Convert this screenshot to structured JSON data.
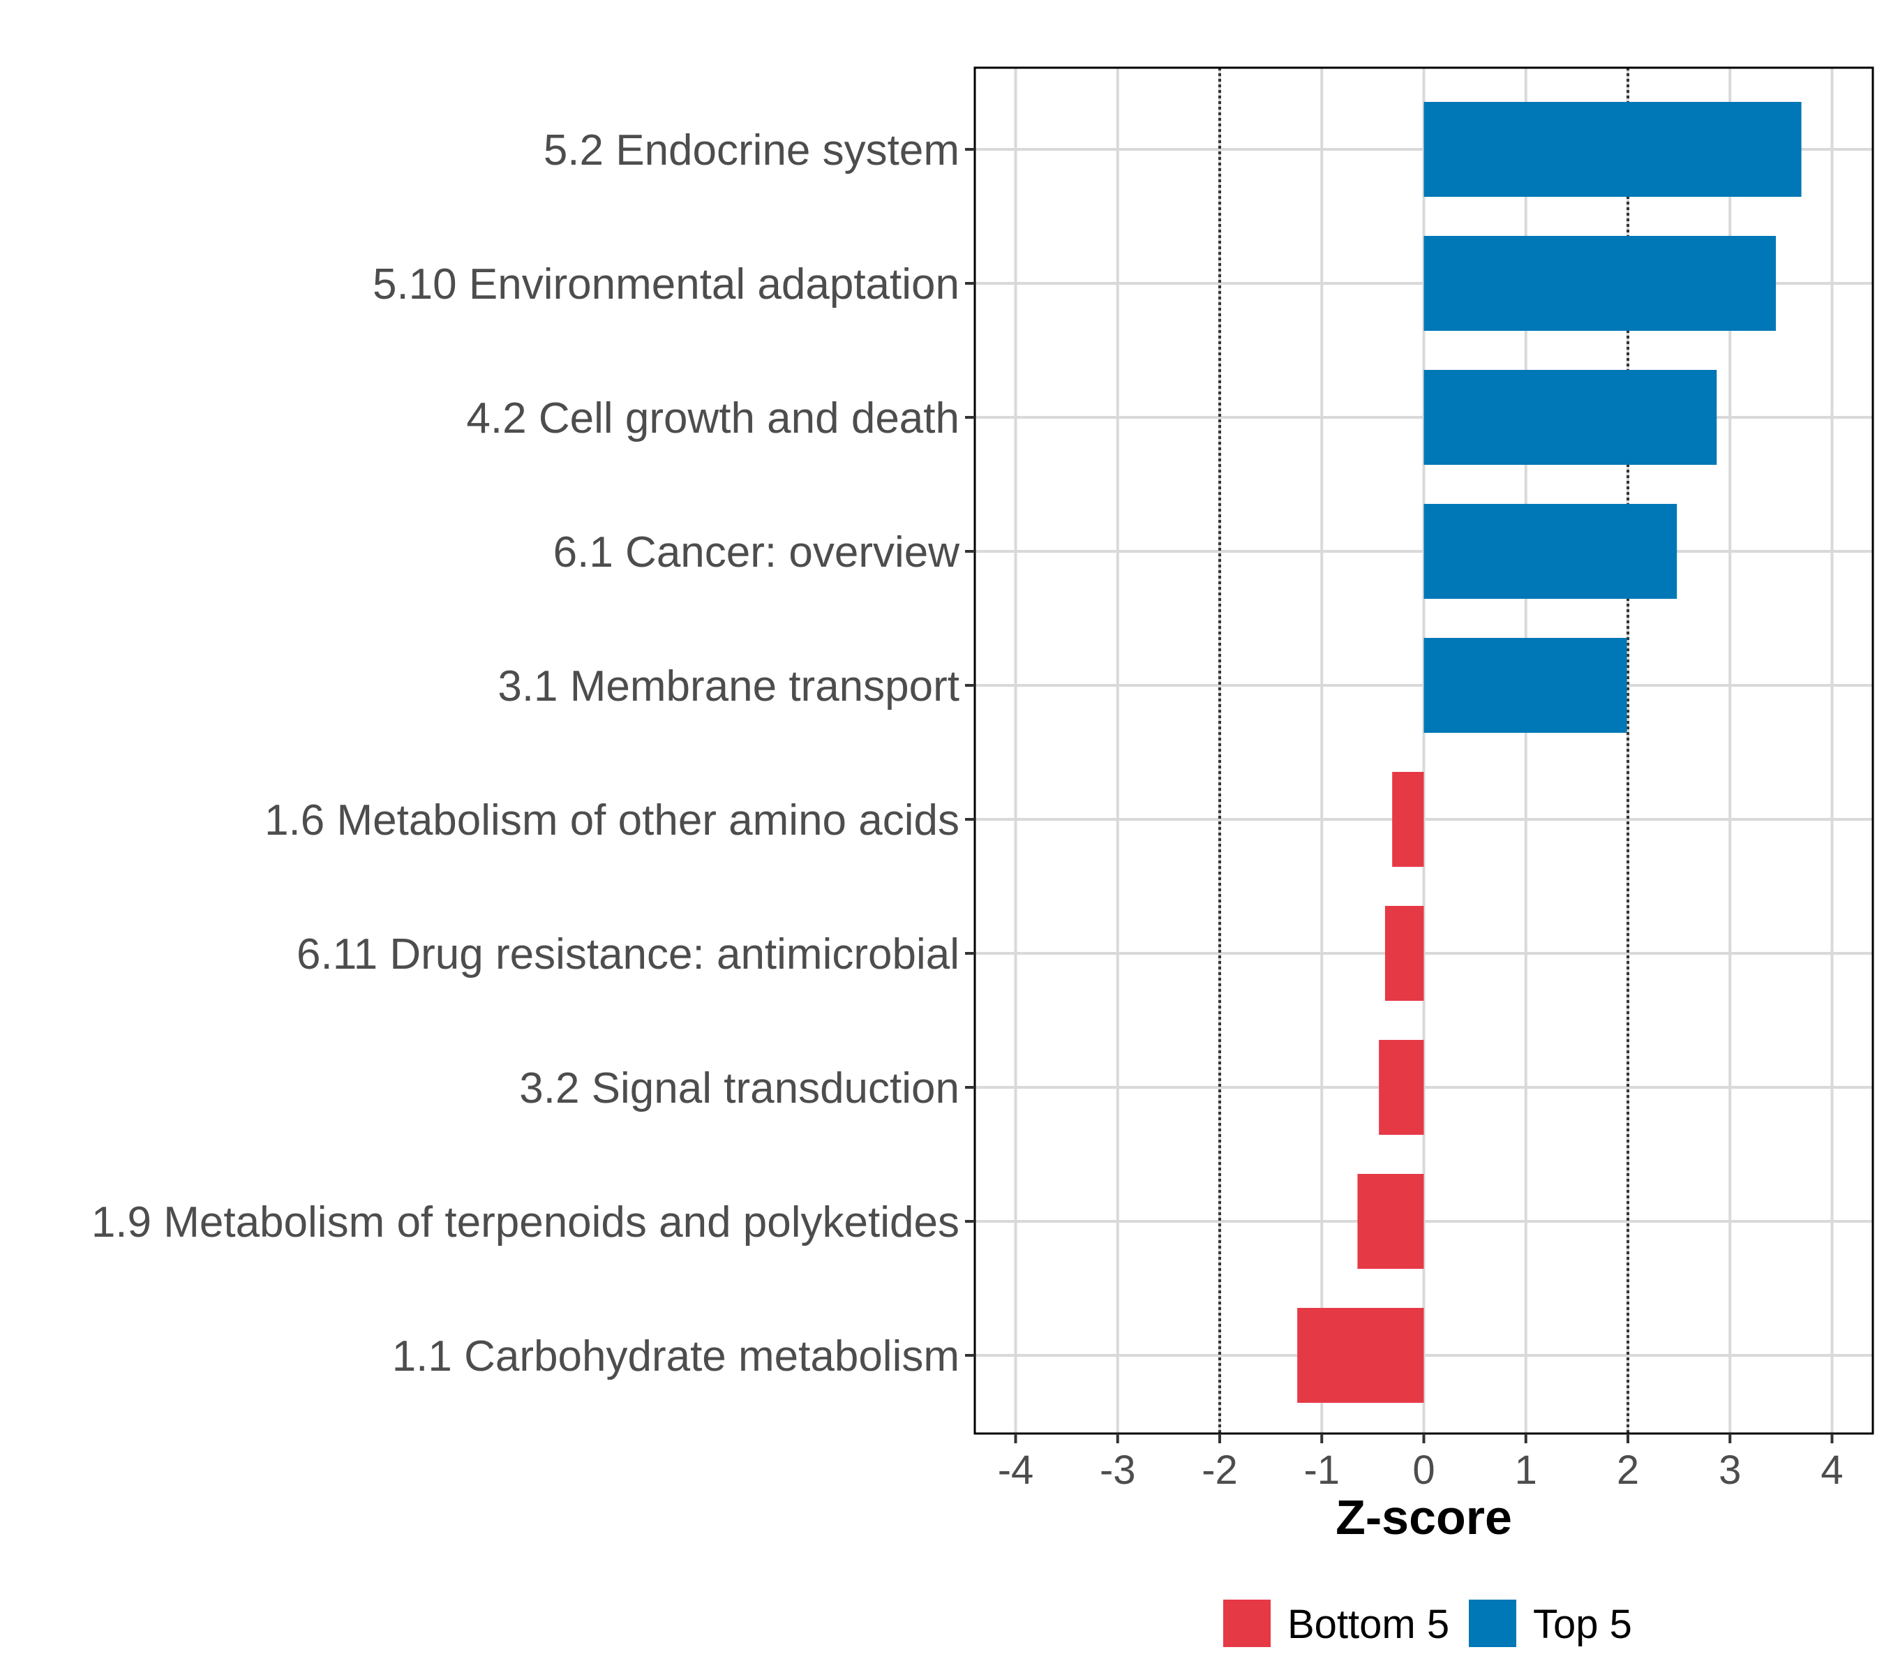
{
  "chart_data": {
    "type": "bar",
    "orientation": "horizontal",
    "categories": [
      "5.2 Endocrine system",
      "5.10 Environmental adaptation",
      "4.2 Cell growth and death",
      "6.1 Cancer: overview",
      "3.1 Membrane transport",
      "1.6 Metabolism of other amino acids",
      "6.11 Drug resistance: antimicrobial",
      "3.2 Signal transduction",
      "1.9 Metabolism of terpenoids and polyketides",
      "1.1 Carbohydrate metabolism"
    ],
    "values": [
      3.7,
      3.45,
      2.87,
      2.48,
      1.99,
      -0.31,
      -0.38,
      -0.44,
      -0.65,
      -1.24
    ],
    "groups": [
      "Top 5",
      "Top 5",
      "Top 5",
      "Top 5",
      "Top 5",
      "Bottom 5",
      "Bottom 5",
      "Bottom 5",
      "Bottom 5",
      "Bottom 5"
    ],
    "xlabel": "Z-score",
    "ylabel": "",
    "xlim": [
      -4.4,
      4.4
    ],
    "xticks": [
      -4,
      -3,
      -2,
      -1,
      0,
      1,
      2,
      3,
      4
    ],
    "xtick_labels": [
      "-4",
      "-3",
      "-2",
      "-1",
      "0",
      "1",
      "2",
      "3",
      "4"
    ],
    "reference_lines": [
      -2,
      2
    ],
    "grid": true,
    "legend": {
      "position": "bottom",
      "entries": [
        {
          "label": "Bottom 5",
          "color": "#E63946"
        },
        {
          "label": "Top 5",
          "color": "#0077B6"
        }
      ]
    }
  },
  "colors": {
    "top": "#0077B6",
    "bottom": "#E63946",
    "grid": "#d9d9d9",
    "axis": "#000000"
  }
}
